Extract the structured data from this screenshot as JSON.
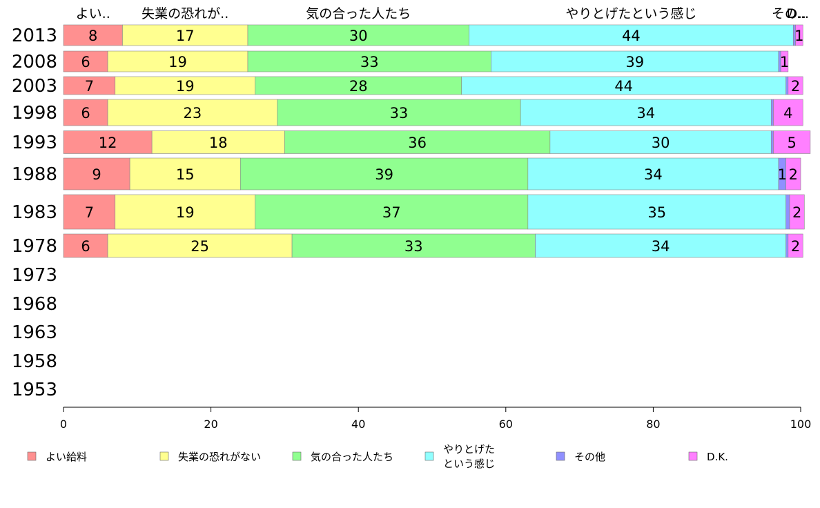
{
  "chart_data": {
    "type": "bar",
    "orientation": "horizontal",
    "stacked": true,
    "categories": [
      "2013",
      "2008",
      "2003",
      "1998",
      "1993",
      "1988",
      "1983",
      "1978",
      "1973",
      "1968",
      "1963",
      "1958",
      "1953"
    ],
    "series": [
      {
        "name": "よい給料",
        "color": "#ff9090",
        "values": [
          8,
          6,
          7,
          6,
          12,
          9,
          7,
          6,
          null,
          null,
          null,
          null,
          null
        ]
      },
      {
        "name": "失業の恐れがない",
        "color": "#ffff90",
        "values": [
          17,
          19,
          19,
          23,
          18,
          15,
          19,
          25,
          null,
          null,
          null,
          null,
          null
        ]
      },
      {
        "name": "気の合った人たち",
        "color": "#90ff90",
        "values": [
          30,
          33,
          28,
          33,
          36,
          39,
          37,
          33,
          null,
          null,
          null,
          null,
          null
        ]
      },
      {
        "name": "やりとげたという感じ",
        "color": "#90ffff",
        "values": [
          44,
          39,
          44,
          34,
          30,
          34,
          35,
          34,
          null,
          null,
          null,
          null,
          null
        ]
      },
      {
        "name": "その他",
        "color": "#9090ff",
        "values": [
          0.3,
          0.3,
          0.3,
          0.3,
          0.3,
          1,
          0.5,
          0.3,
          null,
          null,
          null,
          null,
          null
        ]
      },
      {
        "name": "D.K.",
        "color": "#ff80ff",
        "values": [
          1,
          1,
          2,
          4,
          5,
          2,
          2,
          2,
          null,
          null,
          null,
          null,
          null
        ]
      }
    ],
    "data_labels": [
      [
        "8",
        "17",
        "30",
        "44",
        "",
        "1"
      ],
      [
        "6",
        "19",
        "33",
        "39",
        "",
        "1"
      ],
      [
        "7",
        "19",
        "28",
        "44",
        "",
        "2"
      ],
      [
        "6",
        "23",
        "33",
        "34",
        "",
        "4"
      ],
      [
        "12",
        "18",
        "36",
        "30",
        "",
        "5"
      ],
      [
        "9",
        "15",
        "39",
        "34",
        "1",
        "2"
      ],
      [
        "7",
        "19",
        "37",
        "35",
        "",
        "2"
      ],
      [
        "6",
        "25",
        "33",
        "34",
        "",
        "2"
      ]
    ],
    "top_labels": [
      "よい..",
      "失業の恐れが..",
      "気の合った人たち",
      "やりとげたという感じ",
      "その..",
      "D..."
    ],
    "legend_labels": [
      [
        "よい給料"
      ],
      [
        "失業の恐れがない"
      ],
      [
        "気の合った人たち"
      ],
      [
        "やりとげた",
        "という感じ"
      ],
      [
        "その他"
      ],
      [
        "D.K."
      ]
    ],
    "xlim": [
      0,
      100
    ],
    "xticks": [
      0,
      20,
      40,
      60,
      80,
      100
    ],
    "title": "",
    "xlabel": "",
    "ylabel": "",
    "grid": false,
    "legend_position": "bottom"
  }
}
